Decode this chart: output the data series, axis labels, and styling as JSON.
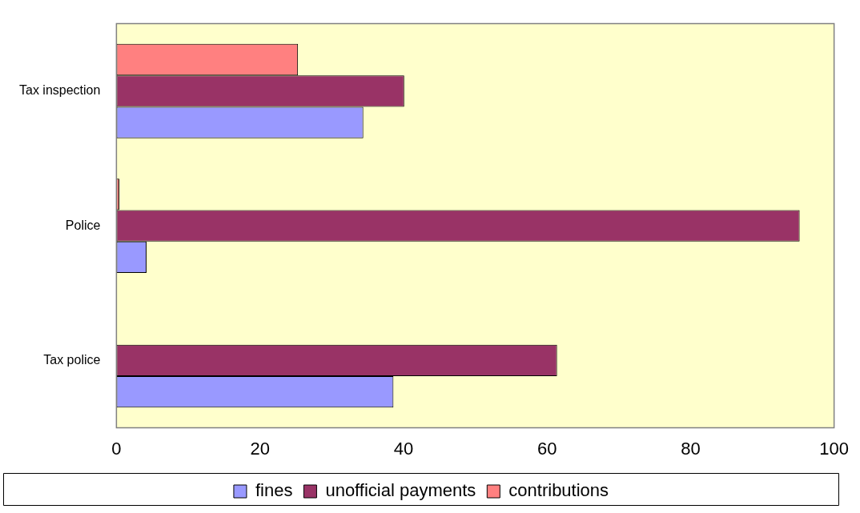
{
  "chart_data": {
    "type": "bar",
    "orientation": "horizontal",
    "categories": [
      "Tax inspection",
      "Police",
      "Tax police"
    ],
    "series": [
      {
        "name": "fines",
        "color": "#9999ff",
        "values": [
          34.4,
          4.2,
          38.6
        ]
      },
      {
        "name": "unofficial payments",
        "color": "#993366",
        "values": [
          40.1,
          95.2,
          61.4
        ]
      },
      {
        "name": "contributions",
        "color": "#ff8080",
        "values": [
          25.3,
          0.4,
          null
        ]
      }
    ],
    "xlim": [
      0,
      100
    ],
    "xticks": [
      0,
      20,
      40,
      60,
      80,
      100
    ],
    "grid": false,
    "legend": "bottom"
  }
}
